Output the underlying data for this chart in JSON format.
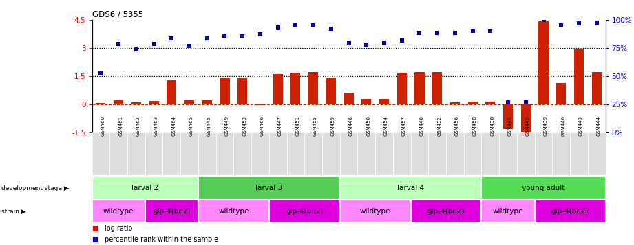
{
  "title": "GDS6 / 5355",
  "sample_labels": [
    "GSM460",
    "GSM461",
    "GSM462",
    "GSM463",
    "GSM464",
    "GSM465",
    "GSM445",
    "GSM449",
    "GSM453",
    "GSM466",
    "GSM447",
    "GSM451",
    "GSM455",
    "GSM459",
    "GSM446",
    "GSM450",
    "GSM454",
    "GSM457",
    "GSM448",
    "GSM452",
    "GSM456",
    "GSM458",
    "GSM438",
    "GSM441",
    "GSM442",
    "GSM439",
    "GSM440",
    "GSM443",
    "GSM444"
  ],
  "log_ratio": [
    0.05,
    0.22,
    0.1,
    0.16,
    1.28,
    0.2,
    0.22,
    1.38,
    1.38,
    -0.06,
    1.58,
    1.68,
    1.72,
    1.38,
    0.62,
    0.27,
    0.27,
    1.68,
    1.72,
    1.72,
    0.09,
    0.13,
    0.12,
    -1.32,
    -1.52,
    4.42,
    1.12,
    2.92,
    1.72
  ],
  "percentile_left": [
    1.65,
    3.2,
    2.9,
    3.2,
    3.5,
    3.1,
    3.5,
    3.6,
    3.6,
    3.7,
    4.1,
    4.2,
    4.2,
    4.0,
    3.25,
    3.15,
    3.25,
    3.4,
    3.8,
    3.8,
    3.8,
    3.9,
    3.9,
    0.1,
    0.1,
    4.5,
    4.2,
    4.3,
    4.35
  ],
  "dev_stage_groups": [
    {
      "label": "larval 2",
      "start": 0,
      "end": 5,
      "color": "#bbffbb"
    },
    {
      "label": "larval 3",
      "start": 6,
      "end": 13,
      "color": "#55cc55"
    },
    {
      "label": "larval 4",
      "start": 14,
      "end": 21,
      "color": "#bbffbb"
    },
    {
      "label": "young adult",
      "start": 22,
      "end": 28,
      "color": "#55dd55"
    }
  ],
  "strain_groups": [
    {
      "label": "wildtype",
      "start": 0,
      "end": 2,
      "color": "#ff88ff"
    },
    {
      "label": "glp-4(bn2)",
      "start": 3,
      "end": 5,
      "color": "#dd00dd"
    },
    {
      "label": "wildtype",
      "start": 6,
      "end": 9,
      "color": "#ff88ff"
    },
    {
      "label": "glp-4(bn2)",
      "start": 10,
      "end": 13,
      "color": "#dd00dd"
    },
    {
      "label": "wildtype",
      "start": 14,
      "end": 17,
      "color": "#ff88ff"
    },
    {
      "label": "glp-4(bn2)",
      "start": 18,
      "end": 21,
      "color": "#dd00dd"
    },
    {
      "label": "wildtype",
      "start": 22,
      "end": 24,
      "color": "#ff88ff"
    },
    {
      "label": "glp-4(bn2)",
      "start": 25,
      "end": 28,
      "color": "#dd00dd"
    }
  ],
  "bar_color": "#cc2200",
  "dot_color": "#0000bb",
  "ylim_left": [
    -1.5,
    4.5
  ],
  "ylim_right": [
    0,
    100
  ],
  "hline0": 0.0,
  "hline1": 1.5,
  "hline2": 3.0,
  "bar_width": 0.55,
  "dev_row_label": "development stage",
  "strain_row_label": "strain",
  "legend_bar": "log ratio",
  "legend_dot": "percentile rank within the sample",
  "bg_color": "#ffffff",
  "xlabel_box_color": "#dddddd"
}
